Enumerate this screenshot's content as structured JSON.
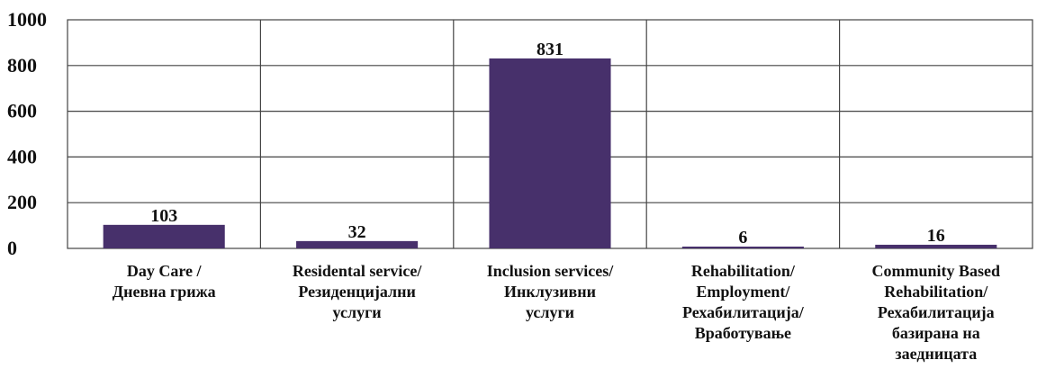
{
  "chart_data": {
    "type": "bar",
    "title": "",
    "xlabel": "",
    "ylabel": "",
    "ylim": [
      0,
      1000
    ],
    "yticks": [
      0,
      200,
      400,
      600,
      800,
      1000
    ],
    "grid": true,
    "legend": "none",
    "bar_color": "#47306b",
    "categories": [
      [
        "Day Care /",
        "Дневна грижа"
      ],
      [
        "Residental service/",
        "Резиденцијални",
        "услуги"
      ],
      [
        "Inclusion services/",
        "Инклузивни",
        "услуги"
      ],
      [
        "Rehabilitation/",
        "Employment/",
        "Рехабилитација/",
        "Вработување"
      ],
      [
        "Community Based",
        "Rehabilitation/",
        "Рехабилитација",
        "базирана на",
        "заедницата"
      ]
    ],
    "values": [
      103,
      32,
      831,
      6,
      16
    ]
  }
}
